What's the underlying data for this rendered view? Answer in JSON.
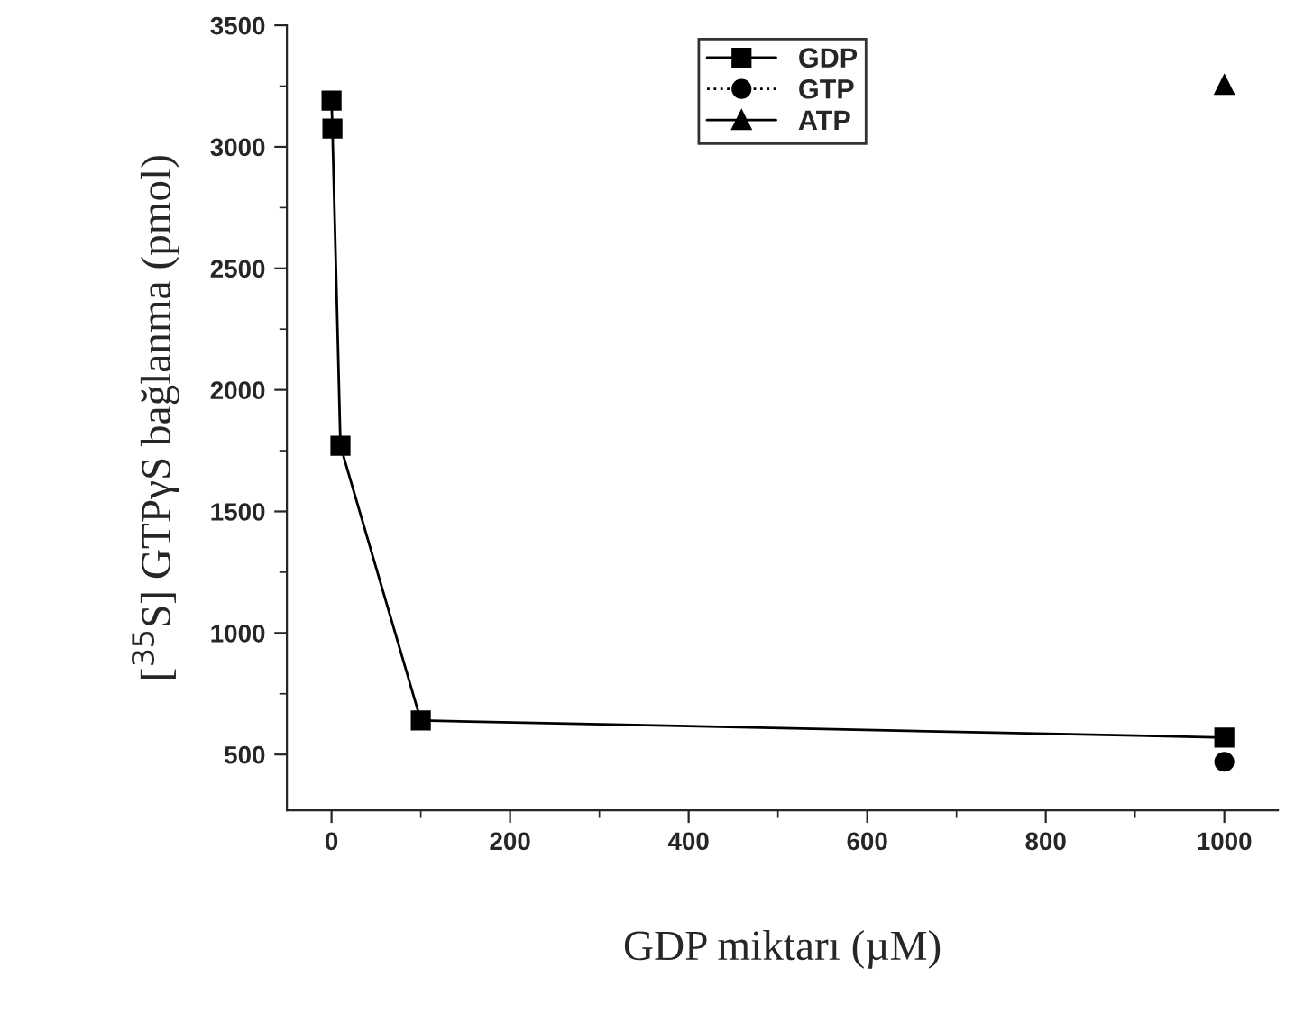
{
  "chart_data": {
    "type": "line",
    "xlabel": "GDP miktarı (µM)",
    "ylabel": "[$^{35}$S] GTPγS bağlanma (pmol)",
    "xlim": [
      -50,
      1060
    ],
    "xticks": [
      0,
      200,
      400,
      600,
      800,
      1000
    ],
    "ylim": [
      270,
      3500
    ],
    "yticks": [
      500,
      1000,
      1500,
      2000,
      2500,
      3000,
      3500
    ],
    "series": [
      {
        "name": "GDP",
        "color": "#000000",
        "marker": "square",
        "line_style": "solid",
        "x": [
          0,
          1,
          10,
          100,
          1000
        ],
        "values": [
          3190,
          3075,
          1770,
          640,
          570
        ]
      },
      {
        "name": "GTP",
        "color": "#000000",
        "marker": "circle",
        "line_style": "dotted",
        "x": [
          1000
        ],
        "values": [
          470
        ]
      },
      {
        "name": "ATP",
        "color": "#000000",
        "marker": "triangle",
        "line_style": "solid",
        "x": [
          1000
        ],
        "values": [
          3255
        ]
      }
    ],
    "legend": "top",
    "grid": false
  }
}
